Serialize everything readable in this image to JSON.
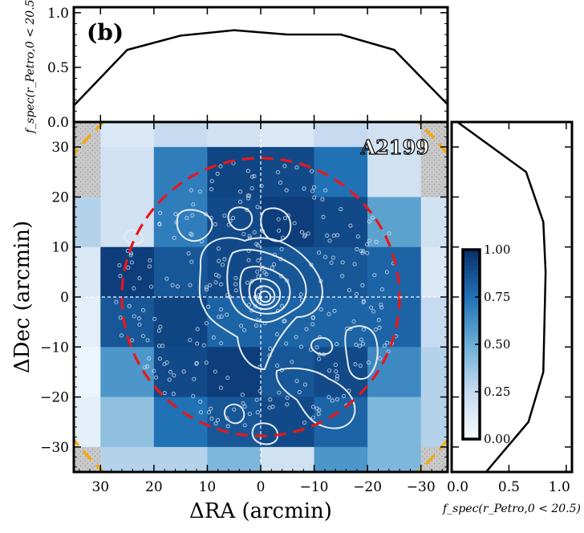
{
  "chart_data": [
    {
      "type": "heatmap",
      "panel_label": "(b)",
      "cluster_label": "A2199",
      "xlabel": "ΔRA (arcmin)",
      "ylabel": "ΔDec (arcmin)",
      "xlim": [
        35,
        -35
      ],
      "ylim": [
        -35,
        35
      ],
      "x_ticks": [
        30,
        20,
        10,
        0,
        -10,
        -20,
        -30
      ],
      "x_tick_labels": [
        "30",
        "20",
        "10",
        "0",
        "−10",
        "−20",
        "−30"
      ],
      "y_ticks": [
        30,
        20,
        10,
        0,
        -10,
        -20,
        -30
      ],
      "y_tick_labels": [
        "30",
        "20",
        "10",
        "0",
        "−10",
        "−20",
        "−30"
      ],
      "grid_x_edges": [
        35,
        30,
        20,
        10,
        0,
        -10,
        -20,
        -30,
        -35
      ],
      "grid_y_edges": [
        35,
        30,
        20,
        10,
        0,
        -10,
        -20,
        -30,
        -35
      ],
      "fspec_grid": [
        [
          null,
          0.15,
          0.25,
          0.2,
          0.15,
          0.25,
          0.2,
          null
        ],
        [
          null,
          0.2,
          0.7,
          0.92,
          0.9,
          0.75,
          0.2,
          null
        ],
        [
          0.3,
          0.2,
          0.7,
          0.9,
          0.95,
          0.9,
          0.55,
          0.2
        ],
        [
          0.15,
          0.95,
          0.85,
          0.9,
          0.85,
          0.85,
          0.8,
          0.15
        ],
        [
          0.1,
          0.85,
          0.92,
          0.8,
          0.8,
          0.8,
          0.8,
          0.25
        ],
        [
          0.05,
          0.6,
          0.9,
          0.95,
          0.85,
          0.9,
          0.65,
          0.3
        ],
        [
          0.1,
          0.4,
          0.75,
          0.85,
          0.9,
          0.8,
          0.45,
          0.3
        ],
        [
          null,
          0.3,
          0.3,
          0.45,
          0.2,
          0.6,
          0.45,
          null
        ]
      ],
      "missing_color": "#c8c8c8",
      "circles": [
        {
          "radius_arcmin": 26,
          "color": "#e8171b",
          "style": "dashed"
        },
        {
          "radius_arcmin": 44,
          "color": "#f9a800",
          "style": "dashed"
        }
      ],
      "colorbar": {
        "min": 0.0,
        "max": 1.0,
        "ticks": [
          "0.00",
          "0.25",
          "0.50",
          "0.75",
          "1.00"
        ],
        "colormap": "Blues"
      }
    },
    {
      "type": "line",
      "panel": "top",
      "xlim": [
        35,
        -35
      ],
      "ylim": [
        0,
        1.05
      ],
      "y_ticks": [
        0.0,
        0.5,
        1.0
      ],
      "y_tick_labels": [
        "0.0",
        "0.5",
        "1.0"
      ],
      "ylabel": "f_spec(r_Petro,0 < 20.5)",
      "x": [
        35,
        25,
        15,
        5,
        -5,
        -15,
        -25,
        -35
      ],
      "y": [
        0.15,
        0.66,
        0.79,
        0.84,
        0.8,
        0.8,
        0.66,
        0.16
      ]
    },
    {
      "type": "line",
      "panel": "right",
      "xlim": [
        0,
        1.05
      ],
      "ylim": [
        -35,
        35
      ],
      "x_ticks": [
        0.0,
        0.5,
        1.0
      ],
      "x_tick_labels": [
        "0.0",
        "0.5",
        "1.0"
      ],
      "xlabel": "f_spec(r_Petro,0 < 20.5)",
      "x": [
        0.05,
        0.65,
        0.8,
        0.82,
        0.81,
        0.8,
        0.67,
        0.3
      ],
      "y": [
        35,
        25,
        15,
        5,
        -5,
        -15,
        -25,
        -35
      ]
    }
  ],
  "colors": {
    "frame": "#000000",
    "crosshair": "#ffffff",
    "contour": "#e6ecf5",
    "points": "#d8e4f2"
  }
}
